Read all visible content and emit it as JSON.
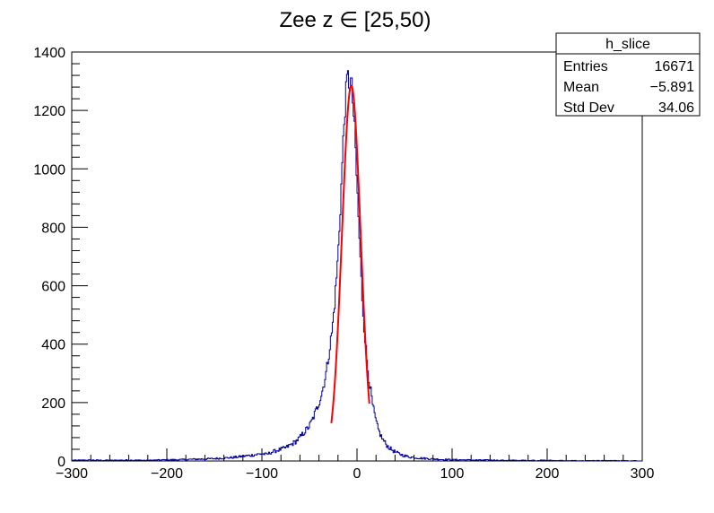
{
  "chart_data": {
    "type": "histogram",
    "title": "Zee z ∈ [25,50)",
    "xlabel": "",
    "ylabel": "",
    "xlim": [
      -300,
      300
    ],
    "ylim": [
      0,
      1400
    ],
    "x_ticks": [
      -300,
      -200,
      -100,
      0,
      100,
      200,
      300
    ],
    "y_ticks": [
      0,
      200,
      400,
      600,
      800,
      1000,
      1200,
      1400
    ],
    "x_tick_labels": [
      "−300",
      "−200",
      "−100",
      "0",
      "100",
      "200",
      "300"
    ],
    "y_tick_labels": [
      "0",
      "200",
      "400",
      "600",
      "800",
      "1000",
      "1200",
      "1400"
    ],
    "grid": false,
    "histogram": {
      "name": "h_slice",
      "color": "#000099",
      "x": [
        -300,
        -280,
        -260,
        -240,
        -220,
        -200,
        -190,
        -180,
        -170,
        -160,
        -150,
        -140,
        -130,
        -120,
        -110,
        -100,
        -95,
        -90,
        -85,
        -80,
        -75,
        -70,
        -65,
        -60,
        -55,
        -50,
        -47,
        -44,
        -41,
        -38,
        -35,
        -32,
        -29,
        -26,
        -23,
        -20,
        -18,
        -16,
        -14,
        -12,
        -10,
        -8,
        -6,
        -4,
        -2,
        0,
        2,
        4,
        6,
        8,
        10,
        12,
        14,
        16,
        18,
        20,
        22,
        24,
        26,
        28,
        30,
        33,
        36,
        39,
        42,
        45,
        48,
        51,
        55,
        60,
        65,
        70,
        75,
        80,
        85,
        90,
        95,
        100,
        110,
        120,
        130,
        140,
        150,
        160,
        170,
        180,
        190,
        200,
        220,
        240,
        260,
        280,
        300
      ],
      "y": [
        2,
        3,
        2,
        3,
        2,
        4,
        4,
        5,
        6,
        7,
        8,
        10,
        12,
        16,
        20,
        25,
        22,
        30,
        35,
        40,
        45,
        55,
        65,
        80,
        100,
        120,
        140,
        165,
        190,
        220,
        260,
        310,
        380,
        450,
        560,
        700,
        830,
        980,
        1130,
        1240,
        1320,
        1290,
        1300,
        1210,
        1100,
        940,
        800,
        650,
        530,
        440,
        360,
        300,
        250,
        200,
        165,
        135,
        110,
        95,
        80,
        70,
        60,
        48,
        40,
        33,
        28,
        24,
        20,
        17,
        14,
        12,
        10,
        9,
        8,
        7,
        6,
        5,
        5,
        4,
        4,
        3,
        3,
        3,
        2,
        2,
        2,
        2,
        2,
        2,
        1,
        1,
        1,
        1,
        0
      ]
    },
    "fit": {
      "color": "#ff0000",
      "type": "gaussian",
      "amplitude": 1285,
      "mean": -6.0,
      "sigma": 9.8,
      "range": [
        -27,
        13
      ]
    },
    "stats_box": {
      "name": "h_slice",
      "rows": [
        {
          "label": "Entries",
          "value": "16671"
        },
        {
          "label": "Mean",
          "value": "−5.891"
        },
        {
          "label": "Std Dev",
          "value": "34.06"
        }
      ]
    }
  }
}
